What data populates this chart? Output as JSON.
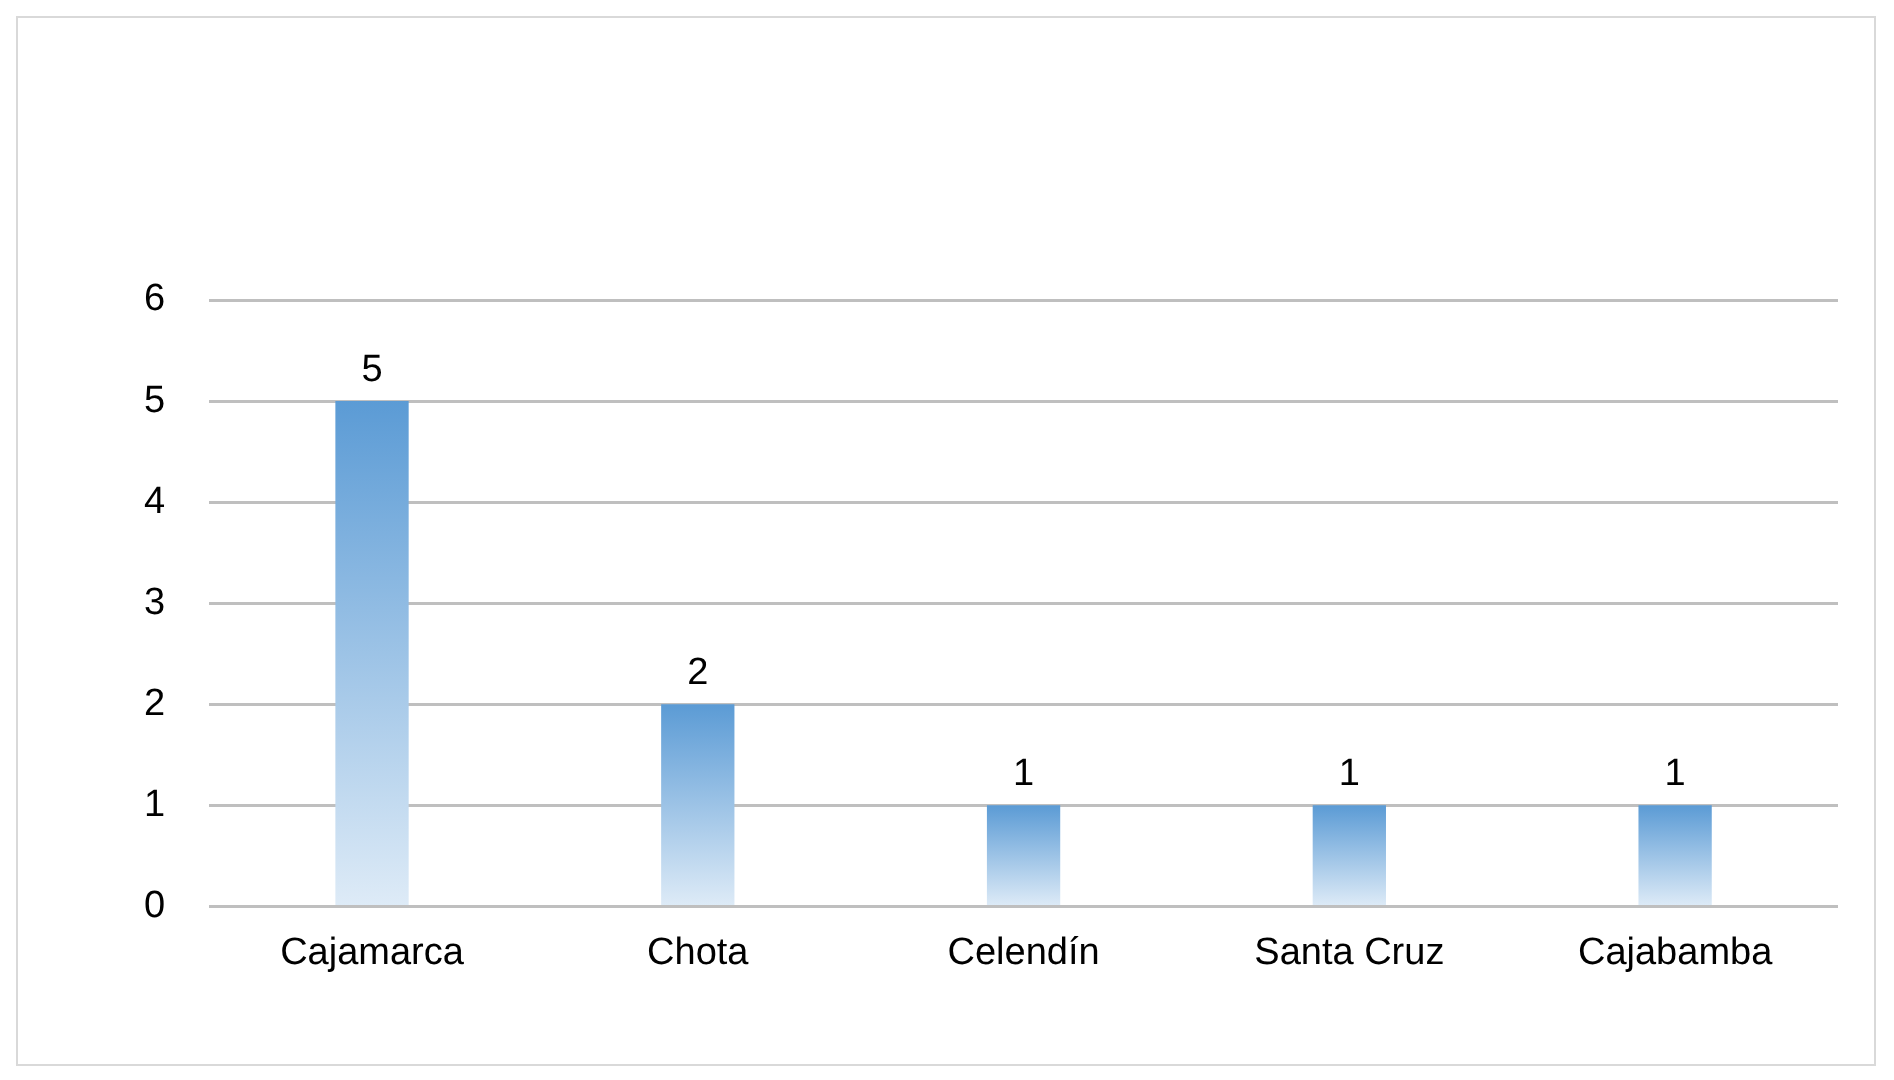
{
  "chart_data": {
    "type": "bar",
    "categories": [
      "Cajamarca",
      "Chota",
      "Celendín",
      "Santa Cruz",
      "Cajabamba"
    ],
    "values": [
      5,
      2,
      1,
      1,
      1
    ],
    "color": "#5b9bd5",
    "ylim": [
      0,
      6
    ],
    "yticks": [
      0,
      1,
      2,
      3,
      4,
      5,
      6
    ],
    "grid": "y",
    "data_labels": true
  }
}
